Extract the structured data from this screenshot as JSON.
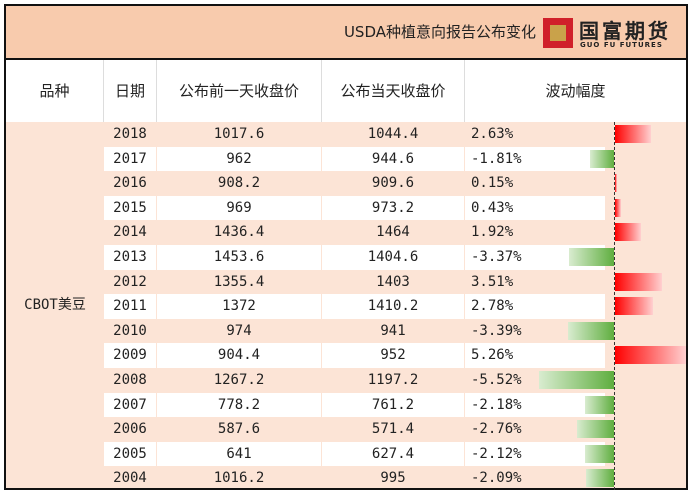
{
  "title": "USDA种植意向报告公布变化",
  "logo": {
    "cn": "国富期货",
    "en": "GUO FU FUTURES"
  },
  "headers": [
    "品种",
    "日期",
    "公布前一天收盘价",
    "公布当天收盘价",
    "波动幅度"
  ],
  "variety": "CBOT美豆",
  "colors": {
    "positive": "#ff0000",
    "negative": "#5fae3f",
    "header": "#f8cbad",
    "row": "#fce4d6"
  },
  "rows": [
    {
      "year": "2018",
      "before": "1017.6",
      "after": "1044.4",
      "change": "2.63%",
      "value": 2.63
    },
    {
      "year": "2017",
      "before": "962",
      "after": "944.6",
      "change": "-1.81%",
      "value": -1.81
    },
    {
      "year": "2016",
      "before": "908.2",
      "after": "909.6",
      "change": "0.15%",
      "value": 0.15
    },
    {
      "year": "2015",
      "before": "969",
      "after": "973.2",
      "change": "0.43%",
      "value": 0.43
    },
    {
      "year": "2014",
      "before": "1436.4",
      "after": "1464",
      "change": "1.92%",
      "value": 1.92
    },
    {
      "year": "2013",
      "before": "1453.6",
      "after": "1404.6",
      "change": "-3.37%",
      "value": -3.37
    },
    {
      "year": "2012",
      "before": "1355.4",
      "after": "1403",
      "change": "3.51%",
      "value": 3.51
    },
    {
      "year": "2011",
      "before": "1372",
      "after": "1410.2",
      "change": "2.78%",
      "value": 2.78
    },
    {
      "year": "2010",
      "before": "974",
      "after": "941",
      "change": "-3.39%",
      "value": -3.39
    },
    {
      "year": "2009",
      "before": "904.4",
      "after": "952",
      "change": "5.26%",
      "value": 5.26
    },
    {
      "year": "2008",
      "before": "1267.2",
      "after": "1197.2",
      "change": "-5.52%",
      "value": -5.52
    },
    {
      "year": "2007",
      "before": "778.2",
      "after": "761.2",
      "change": "-2.18%",
      "value": -2.18
    },
    {
      "year": "2006",
      "before": "587.6",
      "after": "571.4",
      "change": "-2.76%",
      "value": -2.76
    },
    {
      "year": "2005",
      "before": "641",
      "after": "627.4",
      "change": "-2.12%",
      "value": -2.12
    },
    {
      "year": "2004",
      "before": "1016.2",
      "after": "995",
      "change": "-2.09%",
      "value": -2.09
    }
  ]
}
